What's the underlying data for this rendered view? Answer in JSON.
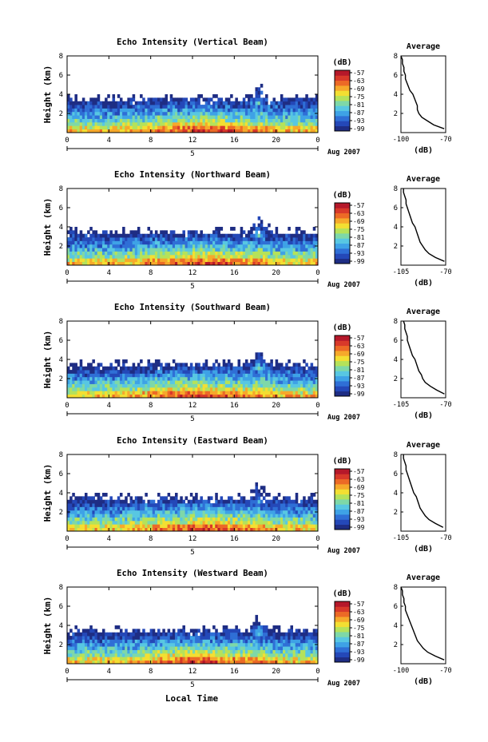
{
  "colorscale": [
    "#1e2d84",
    "#2448b8",
    "#2f6fd6",
    "#3ea2e6",
    "#58c7e2",
    "#7ed8a8",
    "#b5e25a",
    "#f3df32",
    "#f6a92b",
    "#ec6a26",
    "#d8392a",
    "#b5182a"
  ],
  "shared": {
    "xlabel": "Local Time",
    "xticks": [
      "0",
      "4",
      "8",
      "12",
      "16",
      "20",
      "0"
    ],
    "yticks": [
      "2",
      "4",
      "6",
      "8"
    ],
    "date_tick": "5",
    "date_label": "Aug 2007",
    "ylabel": "Height (km)",
    "cbar_unit": "(dB)",
    "avg_title": "Average",
    "avg_xlabel": "(dB)"
  },
  "chart_data": [
    {
      "type": "heatmap",
      "title": "Echo Intensity (Vertical Beam)",
      "colorbar_ticks": [
        "-57",
        "-63",
        "-69",
        "-75",
        "-81",
        "-87",
        "-93",
        "-99"
      ],
      "x_range": [
        0,
        24
      ],
      "y_range": [
        0,
        8
      ],
      "value_range": [
        -99,
        -57
      ],
      "average_profile": {
        "xlim": [
          -100,
          -70
        ],
        "xticks": [
          "-100",
          "-70"
        ],
        "ylim": [
          0,
          8
        ],
        "points": [
          [
            -71,
            0.4
          ],
          [
            -78,
            0.8
          ],
          [
            -82,
            1.2
          ],
          [
            -86,
            1.6
          ],
          [
            -88,
            2.0
          ],
          [
            -89,
            2.4
          ],
          [
            -89,
            2.8
          ],
          [
            -90,
            3.2
          ],
          [
            -91,
            3.6
          ],
          [
            -92,
            4.0
          ],
          [
            -94,
            4.4
          ],
          [
            -95,
            4.8
          ],
          [
            -96,
            5.2
          ],
          [
            -97,
            5.6
          ],
          [
            -97,
            6.0
          ],
          [
            -98,
            6.4
          ],
          [
            -98,
            6.8
          ],
          [
            -99,
            7.2
          ],
          [
            -99,
            7.6
          ],
          [
            -100,
            8.0
          ]
        ]
      }
    },
    {
      "type": "heatmap",
      "title": "Echo Intensity (Northward Beam)",
      "colorbar_ticks": [
        "-57",
        "-63",
        "-69",
        "-75",
        "-81",
        "-87",
        "-93",
        "-99"
      ],
      "x_range": [
        0,
        24
      ],
      "y_range": [
        0,
        8
      ],
      "value_range": [
        -99,
        -57
      ],
      "average_profile": {
        "xlim": [
          -105,
          -70
        ],
        "xticks": [
          "-105",
          "-70"
        ],
        "ylim": [
          0,
          8
        ],
        "points": [
          [
            -71,
            0.4
          ],
          [
            -78,
            0.8
          ],
          [
            -83,
            1.2
          ],
          [
            -86,
            1.6
          ],
          [
            -88,
            2.0
          ],
          [
            -90,
            2.4
          ],
          [
            -91,
            2.8
          ],
          [
            -92,
            3.2
          ],
          [
            -93,
            3.6
          ],
          [
            -94,
            4.0
          ],
          [
            -96,
            4.4
          ],
          [
            -97,
            4.8
          ],
          [
            -98,
            5.2
          ],
          [
            -99,
            5.6
          ],
          [
            -100,
            6.0
          ],
          [
            -101,
            6.4
          ],
          [
            -101,
            6.8
          ],
          [
            -102,
            7.2
          ],
          [
            -103,
            7.6
          ],
          [
            -103,
            8.0
          ]
        ]
      }
    },
    {
      "type": "heatmap",
      "title": "Echo Intensity (Southward Beam)",
      "colorbar_ticks": [
        "-57",
        "-63",
        "-69",
        "-75",
        "-81",
        "-87",
        "-93",
        "-99"
      ],
      "x_range": [
        0,
        24
      ],
      "y_range": [
        0,
        8
      ],
      "value_range": [
        -99,
        -57
      ],
      "average_profile": {
        "xlim": [
          -105,
          -70
        ],
        "xticks": [
          "-105",
          "-70"
        ],
        "ylim": [
          0,
          8
        ],
        "points": [
          [
            -71,
            0.4
          ],
          [
            -77,
            0.8
          ],
          [
            -82,
            1.2
          ],
          [
            -86,
            1.6
          ],
          [
            -88,
            2.0
          ],
          [
            -89,
            2.4
          ],
          [
            -91,
            2.8
          ],
          [
            -92,
            3.2
          ],
          [
            -93,
            3.6
          ],
          [
            -94,
            4.0
          ],
          [
            -96,
            4.4
          ],
          [
            -97,
            4.8
          ],
          [
            -98,
            5.2
          ],
          [
            -99,
            5.6
          ],
          [
            -100,
            6.0
          ],
          [
            -100,
            6.4
          ],
          [
            -101,
            6.8
          ],
          [
            -102,
            7.2
          ],
          [
            -102,
            7.6
          ],
          [
            -103,
            8.0
          ]
        ]
      }
    },
    {
      "type": "heatmap",
      "title": "Echo Intensity (Eastward Beam)",
      "colorbar_ticks": [
        "-57",
        "-63",
        "-69",
        "-75",
        "-81",
        "-87",
        "-93",
        "-99"
      ],
      "x_range": [
        0,
        24
      ],
      "y_range": [
        0,
        8
      ],
      "value_range": [
        -99,
        -57
      ],
      "average_profile": {
        "xlim": [
          -105,
          -70
        ],
        "xticks": [
          "-105",
          "-70"
        ],
        "ylim": [
          0,
          8
        ],
        "points": [
          [
            -72,
            0.4
          ],
          [
            -78,
            0.8
          ],
          [
            -83,
            1.2
          ],
          [
            -86,
            1.6
          ],
          [
            -88,
            2.0
          ],
          [
            -90,
            2.4
          ],
          [
            -91,
            2.8
          ],
          [
            -92,
            3.2
          ],
          [
            -93,
            3.6
          ],
          [
            -95,
            4.0
          ],
          [
            -96,
            4.4
          ],
          [
            -97,
            4.8
          ],
          [
            -98,
            5.2
          ],
          [
            -99,
            5.6
          ],
          [
            -100,
            6.0
          ],
          [
            -101,
            6.4
          ],
          [
            -101,
            6.8
          ],
          [
            -102,
            7.2
          ],
          [
            -103,
            7.6
          ],
          [
            -103,
            8.0
          ]
        ]
      }
    },
    {
      "type": "heatmap",
      "title": "Echo Intensity (Westward Beam)",
      "colorbar_ticks": [
        "-57",
        "-63",
        "-69",
        "-75",
        "-81",
        "-87",
        "-93",
        "-99"
      ],
      "x_range": [
        0,
        24
      ],
      "y_range": [
        0,
        8
      ],
      "value_range": [
        -99,
        -57
      ],
      "average_profile": {
        "xlim": [
          -100,
          -70
        ],
        "xticks": [
          "-100",
          "-70"
        ],
        "ylim": [
          0,
          8
        ],
        "points": [
          [
            -71,
            0.4
          ],
          [
            -77,
            0.8
          ],
          [
            -82,
            1.2
          ],
          [
            -85,
            1.6
          ],
          [
            -87,
            2.0
          ],
          [
            -89,
            2.4
          ],
          [
            -90,
            2.8
          ],
          [
            -91,
            3.2
          ],
          [
            -92,
            3.6
          ],
          [
            -93,
            4.0
          ],
          [
            -94,
            4.4
          ],
          [
            -95,
            4.8
          ],
          [
            -96,
            5.2
          ],
          [
            -97,
            5.6
          ],
          [
            -97,
            6.0
          ],
          [
            -98,
            6.4
          ],
          [
            -98,
            6.8
          ],
          [
            -99,
            7.2
          ],
          [
            -99,
            7.6
          ],
          [
            -100,
            8.0
          ]
        ]
      }
    }
  ]
}
